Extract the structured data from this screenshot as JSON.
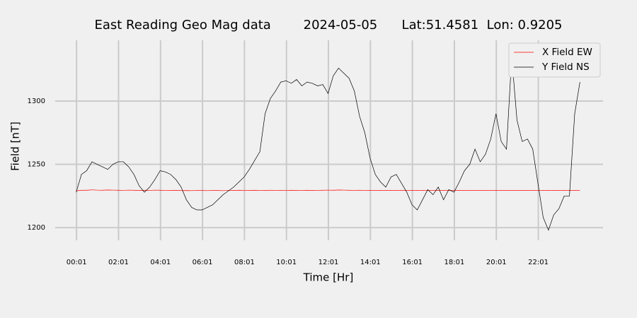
{
  "chart_data": {
    "type": "line",
    "title": "East Reading Geo Mag data        2024-05-05      Lat:51.4581  Lon: 0.9205",
    "x_label": "Time  [Hr]",
    "y_label": "Field  [nT]",
    "x": [
      0,
      0.25,
      0.5,
      0.75,
      1,
      1.25,
      1.5,
      1.75,
      2,
      2.25,
      2.5,
      2.75,
      3,
      3.25,
      3.5,
      3.75,
      4,
      4.25,
      4.5,
      4.75,
      5,
      5.25,
      5.5,
      5.75,
      6,
      6.25,
      6.5,
      6.75,
      7,
      7.25,
      7.5,
      7.75,
      8,
      8.25,
      8.5,
      8.75,
      9,
      9.25,
      9.5,
      9.75,
      10,
      10.25,
      10.5,
      10.75,
      11,
      11.25,
      11.5,
      11.75,
      12,
      12.25,
      12.5,
      12.75,
      13,
      13.25,
      13.5,
      13.75,
      14,
      14.25,
      14.5,
      14.75,
      15,
      15.25,
      15.5,
      15.75,
      16,
      16.25,
      16.5,
      16.75,
      17,
      17.25,
      17.5,
      17.75,
      18,
      18.25,
      18.5,
      18.75,
      19,
      19.25,
      19.5,
      19.75,
      20,
      20.25,
      20.5,
      20.75,
      21,
      21.25,
      21.5,
      21.75,
      22,
      22.25,
      22.5,
      22.75,
      23,
      23.25,
      23.5,
      23.75,
      24
    ],
    "series": [
      {
        "name": "X Field EW",
        "color": "#ff0000",
        "values": [
          1229,
          1229.5,
          1229.5,
          1229.8,
          1229.6,
          1229.5,
          1229.7,
          1229.6,
          1229.5,
          1229.4,
          1229.6,
          1229.5,
          1229.3,
          1229.5,
          1229.4,
          1229.6,
          1229.5,
          1229.4,
          1229.3,
          1229.5,
          1229.2,
          1229.3,
          1229.2,
          1229.4,
          1229.3,
          1229.2,
          1229.4,
          1229.3,
          1229.2,
          1229.4,
          1229.3,
          1229.5,
          1229.4,
          1229.3,
          1229.5,
          1229.4,
          1229.3,
          1229.5,
          1229.4,
          1229.3,
          1229.4,
          1229.5,
          1229.3,
          1229.4,
          1229.5,
          1229.3,
          1229.4,
          1229.5,
          1229.6,
          1229.5,
          1229.7,
          1229.6,
          1229.5,
          1229.4,
          1229.5,
          1229.4,
          1229.3,
          1229.4,
          1229.3,
          1229.4,
          1229.3,
          1229.4,
          1229.3,
          1229.4,
          1229.3,
          1229.4,
          1229.3,
          1229.4,
          1229.3,
          1229.4,
          1229.3,
          1229.4,
          1229.3,
          1229.4,
          1229.3,
          1229.4,
          1229.3,
          1229.4,
          1229.3,
          1229.4,
          1229.3,
          1229.4,
          1229.3,
          1229.4,
          1229.3,
          1229.4,
          1229.3,
          1229.4,
          1229.3,
          1229.4,
          1229.3,
          1229.4,
          1229.3,
          1229.4,
          1229.3,
          1229.4,
          1229.3
        ]
      },
      {
        "name": "Y Field NS",
        "color": "#000000",
        "values": [
          1228,
          1242,
          1245,
          1252,
          1250,
          1248,
          1246,
          1250,
          1252,
          1252,
          1248,
          1242,
          1233,
          1228,
          1232,
          1238,
          1245,
          1244,
          1242,
          1238,
          1232,
          1222,
          1216,
          1214,
          1214,
          1216,
          1218,
          1222,
          1226,
          1229,
          1232,
          1236,
          1240,
          1246,
          1253,
          1260,
          1290,
          1302,
          1308,
          1315,
          1316,
          1314,
          1317,
          1312,
          1315,
          1314,
          1312,
          1313,
          1306,
          1320,
          1326,
          1322,
          1318,
          1308,
          1288,
          1275,
          1255,
          1242,
          1236,
          1232,
          1240,
          1242,
          1235,
          1228,
          1218,
          1214,
          1222,
          1230,
          1226,
          1232,
          1222,
          1230,
          1228,
          1236,
          1245,
          1250,
          1262,
          1252,
          1258,
          1270,
          1290,
          1268,
          1262,
          1335,
          1285,
          1268,
          1270,
          1262,
          1235,
          1208,
          1198,
          1210,
          1215,
          1225,
          1225,
          1290,
          1315
        ]
      }
    ],
    "xlim": [
      -1,
      25.1
    ],
    "xticks": [
      {
        "value": 0.017,
        "label": "00:01"
      },
      {
        "value": 2.017,
        "label": "02:01"
      },
      {
        "value": 4.017,
        "label": "04:01"
      },
      {
        "value": 6.017,
        "label": "06:01"
      },
      {
        "value": 8.017,
        "label": "08:01"
      },
      {
        "value": 10.017,
        "label": "10:01"
      },
      {
        "value": 12.017,
        "label": "12:01"
      },
      {
        "value": 14.017,
        "label": "14:01"
      },
      {
        "value": 16.017,
        "label": "16:01"
      },
      {
        "value": 18.017,
        "label": "18:01"
      },
      {
        "value": 20.017,
        "label": "20:01"
      },
      {
        "value": 22.017,
        "label": "22:01"
      }
    ],
    "ylim": [
      1190,
      1348
    ],
    "yticks": [
      1200,
      1250,
      1300
    ],
    "grid": true,
    "legend": "upper right"
  }
}
